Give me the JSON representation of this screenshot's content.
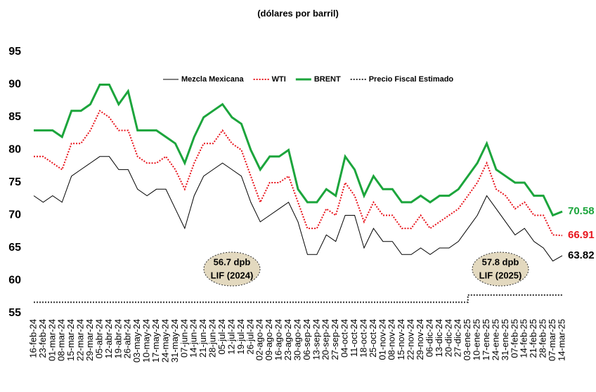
{
  "chart_data": {
    "type": "line",
    "title": "(dólares por barril)",
    "categories": [
      "16-feb-24",
      "23-feb-24",
      "01-mar-24",
      "08-mar-24",
      "15-mar-24",
      "22-mar-24",
      "29-mar-24",
      "05-abr-24",
      "12-abr-24",
      "19-abr-24",
      "26-abr-24",
      "03-may-24",
      "10-may-24",
      "17-may-24",
      "24-may-24",
      "31-may-24",
      "07-jun-24",
      "14-jun-24",
      "21-jun-24",
      "28-jun-24",
      "05-jul-24",
      "12-jul-24",
      "19-jul-24",
      "26-jul-24",
      "02-ago-24",
      "09-ago-24",
      "16-ago-24",
      "23-ago-24",
      "30-ago-24",
      "06-sep-24",
      "13-sep-24",
      "20-sep-24",
      "27-sep-24",
      "04-oct-24",
      "11-oct-24",
      "18-oct-24",
      "25-oct-24",
      "01-nov-24",
      "08-nov-24",
      "15-nov-24",
      "22-nov-24",
      "29-nov-24",
      "06-dic-24",
      "13-dic-24",
      "20-dic-24",
      "27-dic-24",
      "03-ene-25",
      "10-ene-25",
      "17-ene-25",
      "24-ene-25",
      "31-ene-25",
      "07-feb-25",
      "14-feb-25",
      "21-feb-25",
      "28-feb-25",
      "07-mar-25",
      "14-mar-25"
    ],
    "series": [
      {
        "name": "Mezcla Mexicana",
        "color": "#000000",
        "style": "solid",
        "width": 1,
        "values": [
          73,
          72,
          73,
          72,
          76,
          77,
          78,
          79,
          79,
          77,
          77,
          74,
          73,
          74,
          74,
          71,
          68,
          73,
          76,
          77,
          78,
          77,
          76,
          72,
          69,
          70,
          71,
          72,
          69,
          64,
          64,
          67,
          66,
          70,
          70,
          65,
          68,
          66,
          66,
          64,
          64,
          65,
          64,
          65,
          65,
          66,
          68,
          70,
          73,
          71,
          69,
          67,
          68,
          66,
          65,
          63,
          63.82
        ]
      },
      {
        "name": "WTI",
        "color": "#e8141c",
        "style": "dotted",
        "width": 2,
        "values": [
          79,
          79,
          78,
          77,
          81,
          81,
          83,
          86,
          85,
          83,
          83,
          79,
          78,
          78,
          79,
          77,
          74,
          78,
          81,
          81,
          83,
          81,
          80,
          76,
          72,
          75,
          75,
          76,
          72,
          68,
          68,
          71,
          70,
          75,
          73,
          69,
          72,
          70,
          70,
          68,
          68,
          70,
          68,
          69,
          70,
          71,
          73,
          75,
          78,
          74,
          73,
          71,
          72,
          70,
          70,
          67,
          66.91
        ]
      },
      {
        "name": "BRENT",
        "color": "#1ca53c",
        "style": "solid",
        "width": 3,
        "values": [
          83,
          83,
          83,
          82,
          86,
          86,
          87,
          90,
          90,
          87,
          89,
          83,
          83,
          83,
          82,
          81,
          78,
          82,
          85,
          86,
          87,
          85,
          84,
          80,
          77,
          79,
          79,
          80,
          74,
          72,
          72,
          74,
          73,
          79,
          77,
          73,
          76,
          74,
          74,
          72,
          72,
          73,
          72,
          73,
          73,
          74,
          76,
          78,
          81,
          77,
          76,
          75,
          75,
          73,
          73,
          70,
          70.58
        ]
      },
      {
        "name": "Precio Fiscal Estimado",
        "color": "#333333",
        "style": "dotted",
        "width": 2,
        "end_label": false,
        "values": [
          56.7,
          56.7,
          56.7,
          56.7,
          56.7,
          56.7,
          56.7,
          56.7,
          56.7,
          56.7,
          56.7,
          56.7,
          56.7,
          56.7,
          56.7,
          56.7,
          56.7,
          56.7,
          56.7,
          56.7,
          56.7,
          56.7,
          56.7,
          56.7,
          56.7,
          56.7,
          56.7,
          56.7,
          56.7,
          56.7,
          56.7,
          56.7,
          56.7,
          56.7,
          56.7,
          56.7,
          56.7,
          56.7,
          56.7,
          56.7,
          56.7,
          56.7,
          56.7,
          56.7,
          56.7,
          56.7,
          57.8,
          57.8,
          57.8,
          57.8,
          57.8,
          57.8,
          57.8,
          57.8,
          57.8,
          57.8,
          57.8
        ]
      }
    ],
    "annotations": [
      [
        "56.7 dpb",
        "LIF (2024)"
      ],
      [
        "57.8 dpb",
        "LIF (2025)"
      ]
    ],
    "ylim": [
      55,
      95
    ],
    "yticks": [
      55,
      60,
      65,
      70,
      75,
      80,
      85,
      90,
      95
    ],
    "grid": false
  }
}
